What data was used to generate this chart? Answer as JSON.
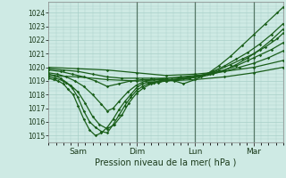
{
  "title": "Pression niveau de la mer( hPa )",
  "ylabel_values": [
    1015,
    1016,
    1017,
    1018,
    1019,
    1020,
    1021,
    1022,
    1023,
    1024
  ],
  "ylim": [
    1014.5,
    1024.8
  ],
  "xlim": [
    0.0,
    4.0
  ],
  "xtick_labels": [
    "Sam",
    "Dim",
    "Lun",
    "Mar"
  ],
  "xtick_label_pos": [
    0.75,
    1.75,
    2.75,
    3.75
  ],
  "xtick_mark_pos": [
    0.5,
    1.0,
    1.5,
    2.0,
    2.5,
    3.0,
    3.5,
    4.0
  ],
  "vline_positions": [
    1.5,
    2.5,
    3.5
  ],
  "bg_color": "#ceeae4",
  "grid_color": "#a8cfc8",
  "line_color": "#1a5e1a",
  "fig_bg": "#ceeae4",
  "series": [
    {
      "x": [
        0.0,
        0.08,
        0.16,
        0.25,
        0.33,
        0.42,
        0.5,
        0.6,
        0.7,
        0.8,
        0.9,
        1.0,
        1.1,
        1.2,
        1.3,
        1.4,
        1.5,
        1.6,
        1.7,
        1.8,
        1.9,
        2.0,
        2.15,
        2.3,
        2.5,
        2.7,
        2.9,
        3.1,
        3.3,
        3.5,
        3.7,
        3.9,
        4.0
      ],
      "y": [
        1019.2,
        1019.1,
        1019.0,
        1018.8,
        1018.4,
        1018.0,
        1017.2,
        1016.2,
        1015.4,
        1015.0,
        1015.2,
        1015.6,
        1016.2,
        1016.9,
        1017.5,
        1018.0,
        1018.5,
        1018.8,
        1018.9,
        1018.9,
        1019.0,
        1019.1,
        1019.0,
        1018.8,
        1019.1,
        1019.5,
        1020.1,
        1020.8,
        1021.6,
        1022.4,
        1023.2,
        1024.0,
        1024.4
      ]
    },
    {
      "x": [
        0.0,
        0.1,
        0.2,
        0.3,
        0.4,
        0.5,
        0.6,
        0.7,
        0.8,
        0.9,
        1.0,
        1.1,
        1.2,
        1.3,
        1.4,
        1.5,
        1.6,
        1.7,
        1.8,
        1.9,
        2.0,
        2.2,
        2.4,
        2.6,
        2.8,
        3.0,
        3.2,
        3.4,
        3.6,
        3.8,
        4.0
      ],
      "y": [
        1019.5,
        1019.4,
        1019.2,
        1018.9,
        1018.5,
        1017.8,
        1016.8,
        1016.0,
        1015.6,
        1015.3,
        1015.2,
        1015.8,
        1016.5,
        1017.2,
        1017.8,
        1018.3,
        1018.6,
        1018.8,
        1018.9,
        1019.0,
        1019.0,
        1019.1,
        1019.2,
        1019.4,
        1019.7,
        1020.1,
        1020.6,
        1021.1,
        1021.7,
        1022.4,
        1023.2
      ]
    },
    {
      "x": [
        0.0,
        0.12,
        0.25,
        0.37,
        0.5,
        0.62,
        0.75,
        0.87,
        1.0,
        1.12,
        1.25,
        1.37,
        1.5,
        1.62,
        1.75,
        1.87,
        2.0,
        2.2,
        2.4,
        2.6,
        2.8,
        3.0,
        3.2,
        3.4,
        3.6,
        3.8,
        4.0
      ],
      "y": [
        1019.3,
        1019.2,
        1019.0,
        1018.7,
        1018.2,
        1017.4,
        1016.4,
        1015.8,
        1015.5,
        1015.8,
        1016.5,
        1017.4,
        1018.1,
        1018.5,
        1018.8,
        1018.9,
        1019.0,
        1019.1,
        1019.2,
        1019.3,
        1019.5,
        1019.8,
        1020.2,
        1020.7,
        1021.3,
        1022.0,
        1022.8
      ]
    },
    {
      "x": [
        0.0,
        0.15,
        0.3,
        0.45,
        0.6,
        0.75,
        0.9,
        1.0,
        1.1,
        1.2,
        1.35,
        1.5,
        1.65,
        1.8,
        1.95,
        2.1,
        2.3,
        2.5,
        2.7,
        2.9,
        3.1,
        3.3,
        3.5,
        3.7,
        3.9,
        4.0
      ],
      "y": [
        1019.6,
        1019.5,
        1019.3,
        1019.0,
        1018.6,
        1018.0,
        1017.3,
        1016.8,
        1017.0,
        1017.5,
        1018.2,
        1018.7,
        1019.0,
        1019.1,
        1019.1,
        1019.1,
        1019.2,
        1019.3,
        1019.5,
        1019.8,
        1020.2,
        1020.6,
        1021.0,
        1021.5,
        1022.1,
        1022.5
      ]
    },
    {
      "x": [
        0.0,
        0.2,
        0.4,
        0.6,
        0.8,
        1.0,
        1.2,
        1.4,
        1.6,
        1.8,
        2.0,
        2.2,
        2.4,
        2.6,
        2.8,
        3.0,
        3.2,
        3.4,
        3.5,
        3.6,
        3.8,
        4.0
      ],
      "y": [
        1019.8,
        1019.7,
        1019.5,
        1019.3,
        1019.0,
        1018.6,
        1018.8,
        1019.0,
        1019.1,
        1019.1,
        1019.2,
        1019.2,
        1019.3,
        1019.4,
        1019.6,
        1019.8,
        1020.1,
        1020.5,
        1020.7,
        1020.9,
        1021.3,
        1021.8
      ]
    },
    {
      "x": [
        0.0,
        0.25,
        0.5,
        0.75,
        1.0,
        1.25,
        1.5,
        1.75,
        2.0,
        2.25,
        2.5,
        2.75,
        3.0,
        3.25,
        3.5,
        3.75,
        4.0
      ],
      "y": [
        1019.9,
        1019.8,
        1019.7,
        1019.5,
        1019.3,
        1019.2,
        1019.2,
        1019.2,
        1019.2,
        1019.3,
        1019.4,
        1019.5,
        1019.7,
        1020.0,
        1020.3,
        1020.7,
        1021.2
      ]
    },
    {
      "x": [
        0.0,
        0.5,
        1.0,
        1.5,
        2.0,
        2.5,
        3.0,
        3.5,
        4.0
      ],
      "y": [
        1020.0,
        1019.9,
        1019.8,
        1019.6,
        1019.4,
        1019.5,
        1019.7,
        1020.0,
        1020.5
      ]
    },
    {
      "x": [
        0.0,
        0.5,
        1.0,
        1.5,
        2.0,
        2.5,
        3.0,
        3.5,
        4.0
      ],
      "y": [
        1019.4,
        1019.3,
        1019.1,
        1019.0,
        1019.0,
        1019.1,
        1019.3,
        1019.6,
        1020.0
      ]
    }
  ]
}
